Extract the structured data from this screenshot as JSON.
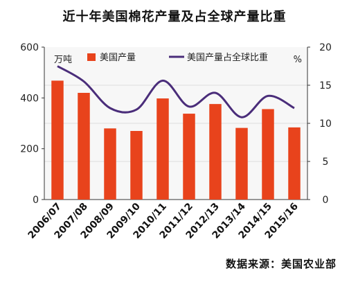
{
  "title": "近十年美国棉花产量及占全球产量比重",
  "source": "数据来源：美国农业部",
  "colors": {
    "bar": "#e8431c",
    "line": "#4a2d7a",
    "plot_bg": "#f7f7f7",
    "grid": "#dcdcdc"
  },
  "chart_data": {
    "type": "bar",
    "title": "近十年美国棉花产量及占全球产量比重",
    "categories": [
      "2006/07",
      "2007/08",
      "2008/09",
      "2009/10",
      "2010/11",
      "2011/12",
      "2012/13",
      "2013/14",
      "2014/15",
      "2015/16"
    ],
    "y_left_unit": "万吨",
    "y_right_unit": "%",
    "ylim_left": [
      0,
      600
    ],
    "ylim_right": [
      0,
      20
    ],
    "yticks_left": [
      "0",
      "200",
      "400",
      "600"
    ],
    "yticks_right": [
      "0",
      "5",
      "10",
      "15",
      "20"
    ],
    "grid": true,
    "legend_position": "top",
    "series": [
      {
        "name": "美国产量",
        "type": "bar",
        "axis": "left",
        "values": [
          468,
          420,
          280,
          270,
          398,
          338,
          376,
          282,
          356,
          284
        ]
      },
      {
        "name": "美国产量占全球比重",
        "type": "line",
        "axis": "right",
        "values": [
          17.5,
          15.5,
          12.0,
          11.8,
          15.6,
          12.2,
          14.0,
          10.8,
          13.6,
          12.0
        ]
      }
    ]
  }
}
